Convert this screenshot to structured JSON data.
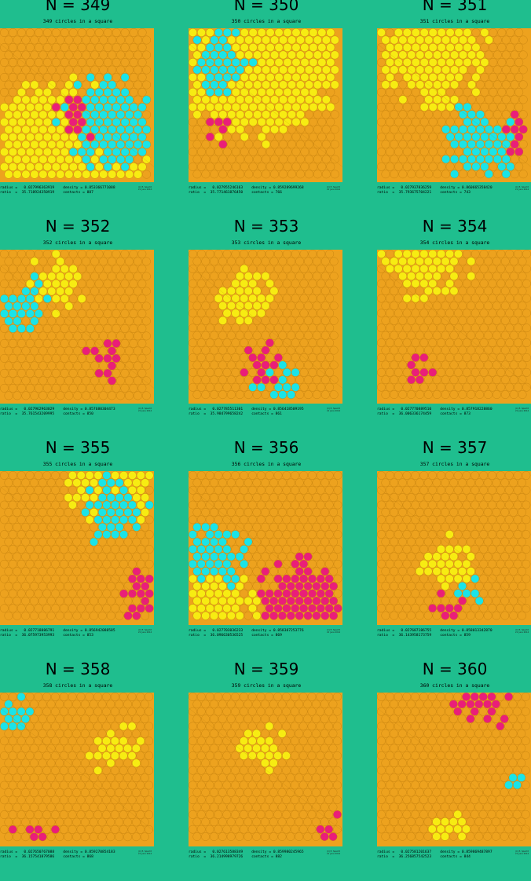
{
  "colors": {
    "background": "#1fbe8e",
    "orange": "#eda21e",
    "yellow": "#f7ec12",
    "cyan": "#1ae4e8",
    "magenta": "#ea1e79"
  },
  "panels": [
    {
      "heading": "N = 349",
      "caption": "349 circles in a square",
      "stats": [
        "radius =   0.027996363919    density = 0.853366771088",
        "ratio  =  35.718924350919    contacts = 887"
      ],
      "credit": [
        "(C) E. Specht",
        "21 June 2014"
      ],
      "circles": {
        "diameter_fraction": 0.056,
        "counts": {
          "orange": 145,
          "yellow": 112,
          "cyan": 80,
          "magenta": 12
        }
      }
    },
    {
      "heading": "N = 350",
      "caption": "350 circles in a square",
      "stats": [
        "radius =   0.027955246163    density = 0.859289699268",
        "ratio  =  35.771461876450    contacts = 766"
      ],
      "credit": [
        "(C) E. Specht",
        "21 June 2014"
      ],
      "circles": {
        "diameter_fraction": 0.05591,
        "counts": {
          "orange": 130,
          "yellow": 178,
          "cyan": 36,
          "magenta": 6
        }
      }
    },
    {
      "heading": "N = 351",
      "caption": "351 circles in a square",
      "stats": [
        "radius =   0.027937836259    density = 0.860665358420",
        "ratio  =  35.793675704221    contacts = 743"
      ],
      "credit": [
        "(C) E. Specht",
        "21 June 2014"
      ],
      "circles": {
        "diameter_fraction": 0.05588,
        "counts": {
          "orange": 190,
          "yellow": 100,
          "cyan": 52,
          "magenta": 9
        }
      }
    },
    {
      "heading": "N = 352",
      "caption": "352 circles in a square",
      "stats": [
        "radius =   0.027962963029    density = 0.857680304473",
        "ratio  =  35.761543209995    contacts = 850"
      ],
      "credit": [
        "(C) E. Specht",
        "21 June 2014"
      ],
      "circles": {
        "diameter_fraction": 0.05593,
        "counts": {
          "orange": 290,
          "yellow": 26,
          "cyan": 24,
          "magenta": 12
        }
      }
    },
    {
      "heading": "N = 353",
      "caption": "353 circles in a square",
      "stats": [
        "radius =   0.027785511301    density = 0.856418509195",
        "ratio  =  35.984799658242    contacts = 861"
      ],
      "credit": [
        "(C) E. Specht",
        "21 June 2014"
      ],
      "circles": {
        "diameter_fraction": 0.05557,
        "counts": {
          "orange": 290,
          "yellow": 36,
          "cyan": 13,
          "magenta": 14
        }
      }
    },
    {
      "heading": "N = 354",
      "caption": "354 circles in a square",
      "stats": [
        "radius =   0.027770889510    density = 0.857918228860",
        "ratio  =  36.006336174459    contacts = 873"
      ],
      "credit": [
        "(C) E. Specht",
        "21 June 2014"
      ],
      "circles": {
        "diameter_fraction": 0.05554,
        "counts": {
          "orange": 300,
          "yellow": 46,
          "cyan": 0,
          "magenta": 8
        }
      }
    },
    {
      "heading": "N = 355",
      "caption": "355 circles in a square",
      "stats": [
        "radius =   0.027718886791    density = 0.856942088585",
        "ratio  =  36.075973953993    contacts = 853"
      ],
      "credit": [
        "(C) E. Specht",
        "21 June 2014"
      ],
      "circles": {
        "diameter_fraction": 0.05544,
        "counts": {
          "orange": 268,
          "yellow": 33,
          "cyan": 38,
          "magenta": 16
        }
      }
    },
    {
      "heading": "N = 356",
      "caption": "356 circles in a square",
      "stats": [
        "radius =   0.027703036233    density = 0.858387253776",
        "ratio  =  36.096630536525    contacts = 869"
      ],
      "credit": [
        "(C) E. Specht",
        "21 June 2014"
      ],
      "circles": {
        "diameter_fraction": 0.05541,
        "counts": {
          "orange": 218,
          "yellow": 38,
          "cyan": 40,
          "magenta": 60
        }
      }
    },
    {
      "heading": "N = 357",
      "caption": "357 circles in a square",
      "stats": [
        "radius =   0.027687186755    density = 0.858013342870",
        "ratio  =  36.143958173759    contacts = 859"
      ],
      "credit": [
        "(C) E. Specht",
        "21 June 2014"
      ],
      "circles": {
        "diameter_fraction": 0.05537,
        "counts": {
          "orange": 315,
          "yellow": 28,
          "cyan": 6,
          "magenta": 8
        }
      }
    },
    {
      "heading": "N = 358",
      "caption": "358 circles in a square",
      "stats": [
        "radius =   0.027650767088    density = 0.859270854183",
        "ratio  =  36.157541879586    contacts = 868"
      ],
      "credit": [
        "(C) E. Specht",
        "21 June 2014"
      ],
      "circles": {
        "diameter_fraction": 0.0553,
        "counts": {
          "orange": 318,
          "yellow": 22,
          "cyan": 12,
          "magenta": 6
        }
      }
    },
    {
      "heading": "N = 359",
      "caption": "359 circles in a square",
      "stats": [
        "radius =   0.027613588349    density = 0.859980245965",
        "ratio  =  36.214998979726    contacts = 882"
      ],
      "credit": [
        "(C) E. Specht",
        "21 June 2014"
      ],
      "circles": {
        "diameter_fraction": 0.05523,
        "counts": {
          "orange": 332,
          "yellow": 22,
          "cyan": 0,
          "magenta": 5
        }
      }
    },
    {
      "heading": "N = 360",
      "caption": "360 circles in a square",
      "stats": [
        "radius =   0.027581201637    density = 0.859869487897",
        "ratio  =  36.256857542523    contacts = 844"
      ],
      "credit": [
        "(C) E. Specht",
        "21 June 2014"
      ],
      "circles": {
        "diameter_fraction": 0.05516,
        "counts": {
          "orange": 325,
          "yellow": 13,
          "cyan": 4,
          "magenta": 18
        }
      }
    }
  ]
}
